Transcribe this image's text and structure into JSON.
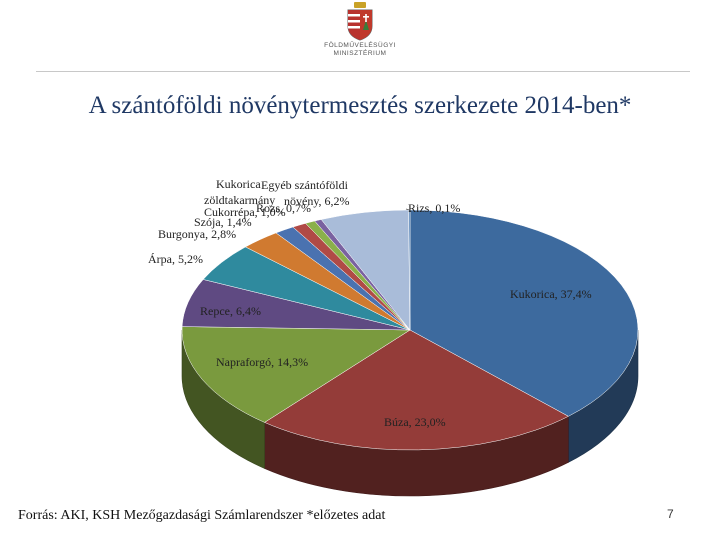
{
  "header": {
    "logo_line1": "FÖLDMŰVELÉSÜGYI",
    "logo_line2": "MINISZTÉRIUM",
    "logo_icon": "hungarian-coat-of-arms-icon"
  },
  "slide": {
    "title": "A szántóföldi növénytermesztés szerkezete 2014-ben*",
    "source": "Forrás: AKI, KSH Mezőgazdasági Számlarendszer *előzetes adat",
    "page_number": "7"
  },
  "chart_data": {
    "type": "pie",
    "title": "A szántóföldi növénytermesztés szerkezete 2014-ben*",
    "unit": "%",
    "slices": [
      {
        "name": "Kukorica",
        "value": 37.4,
        "label": "Kukorica, 37,4%",
        "color": "#3d6a9e"
      },
      {
        "name": "Búza",
        "value": 23.0,
        "label": "Búza, 23,0%",
        "color": "#943c39"
      },
      {
        "name": "Napraforgó",
        "value": 14.3,
        "label": "Napraforgó, 14,3%",
        "color": "#7a9a3e"
      },
      {
        "name": "Repce",
        "value": 6.4,
        "label": "Repce, 6,4%",
        "color": "#5f4a82"
      },
      {
        "name": "Árpa",
        "value": 5.2,
        "label": "Árpa, 5,2%",
        "color": "#2f8a9e"
      },
      {
        "name": "Burgonya",
        "value": 2.8,
        "label": "Burgonya, 2,8%",
        "color": "#d07a30"
      },
      {
        "name": "Szója",
        "value": 1.4,
        "label": "Szója, 1,4%",
        "color": "#4a72b0"
      },
      {
        "name": "Cukorrépa",
        "value": 1.0,
        "label": "Cukorrépa, 1,0%",
        "color": "#b04a46"
      },
      {
        "name": "Rozs",
        "value": 0.7,
        "label": "Rozs, 0,7%",
        "color": "#8ab04a"
      },
      {
        "name": "Kukorica, zöldtakarmány",
        "value": 0.5,
        "label": "Kukorica, zöldtakarmány",
        "color": "#7a62a0"
      },
      {
        "name": "Egyéb szántóföldi növény",
        "value": 6.2,
        "label": "Egyéb szántóföldi növény, 6,2%",
        "color": "#a9bcd9"
      },
      {
        "name": "Rizs",
        "value": 0.1,
        "label": "Rizs, 0,1%",
        "color": "#4a7ab0"
      }
    ]
  }
}
